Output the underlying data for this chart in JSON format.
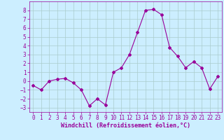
{
  "x": [
    0,
    1,
    2,
    3,
    4,
    5,
    6,
    7,
    8,
    9,
    10,
    11,
    12,
    13,
    14,
    15,
    16,
    17,
    18,
    19,
    20,
    21,
    22,
    23
  ],
  "y": [
    -0.5,
    -1.0,
    0.0,
    0.2,
    0.3,
    -0.2,
    -1.0,
    -2.8,
    -2.0,
    -2.7,
    1.0,
    1.5,
    3.0,
    5.5,
    8.0,
    8.1,
    7.5,
    3.8,
    2.8,
    1.5,
    2.2,
    1.5,
    -0.9,
    0.5
  ],
  "line_color": "#990099",
  "marker": "D",
  "marker_size": 2,
  "bg_color": "#cceeff",
  "grid_color": "#aacccc",
  "xlabel": "Windchill (Refroidissement éolien,°C)",
  "ylim": [
    -3.5,
    9.0
  ],
  "xlim": [
    -0.5,
    23.5
  ],
  "yticks": [
    -3,
    -2,
    -1,
    0,
    1,
    2,
    3,
    4,
    5,
    6,
    7,
    8
  ],
  "xticks": [
    0,
    1,
    2,
    3,
    4,
    5,
    6,
    7,
    8,
    9,
    10,
    11,
    12,
    13,
    14,
    15,
    16,
    17,
    18,
    19,
    20,
    21,
    22,
    23
  ],
  "tick_fontsize": 5.5,
  "xlabel_fontsize": 6.0,
  "xlabel_fontweight": "bold"
}
